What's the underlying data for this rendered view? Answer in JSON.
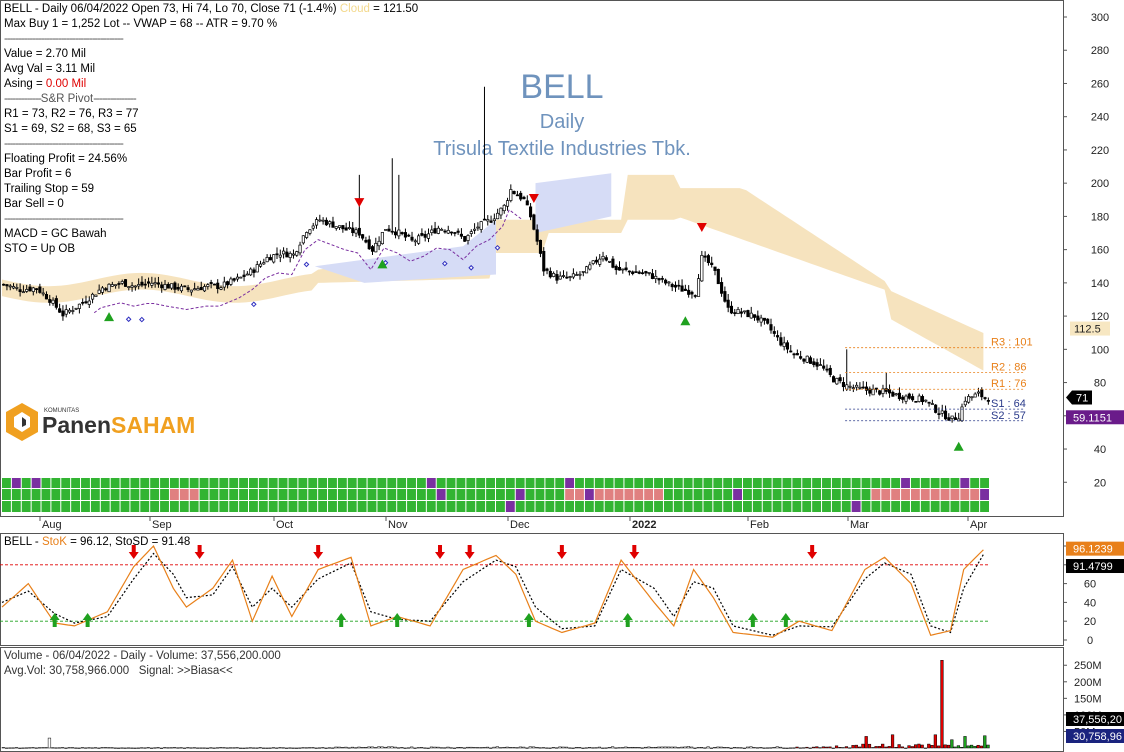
{
  "header": {
    "line1": "BELL - Daily 06/04/2022 Open 73, Hi 74, Lo 70, Close 71 (-1.4%)",
    "cloud_label": "Cloud",
    "cloud_value": "= 121.50",
    "line2": "Max Buy 1 = 1,252 Lot  --  VWAP = 68  --  ATR = 9.70 %"
  },
  "info": {
    "value": "Value = 2.70 Mil",
    "avg_val": "Avg Val = 3.11 Mil",
    "asing_label": "Asing = ",
    "asing_value": "0.00 Mil",
    "pivot_title": "S&R Pivot",
    "r_line": "R1 = 73, R2 = 76, R3 = 77",
    "s_line": "S1 = 69, S2 = 68, S3 = 65",
    "floating_profit": "Floating Profit = 24.56%",
    "bar_profit": "Bar Profit = 6",
    "trailing_stop": "Trailing Stop = 59",
    "bar_sell": "Bar Sell = 0",
    "macd": "MACD =  GC Bawah",
    "sto": "STO  =  Up OB"
  },
  "watermark": {
    "ticker": "BELL",
    "period": "Daily",
    "company": "Trisula Textile Industries Tbk."
  },
  "logo": {
    "small": "KOMUNITAS",
    "part1": "Panen",
    "part2": "SAHAM"
  },
  "colors": {
    "up": "#1fa11f",
    "down": "#e00000",
    "cloud": "#f5deb3",
    "cloud_blue": "#d6dcf6",
    "signal_grid": "#32b432",
    "stoch_k": "#e8801a"
  },
  "chart_data": [
    {
      "type": "candlestick",
      "panel": "price",
      "ylim": [
        0,
        310
      ],
      "y_ticks": [
        20,
        40,
        60,
        80,
        100,
        120,
        140,
        160,
        180,
        200,
        220,
        240,
        260,
        280,
        300
      ],
      "x_labels": [
        "Aug",
        "Sep",
        "Oct",
        "Nov",
        "Dec",
        "2022",
        "Feb",
        "Mar",
        "Apr"
      ],
      "close_path": [
        [
          0,
          139
        ],
        [
          5,
          136
        ],
        [
          10,
          137
        ],
        [
          14,
          130
        ],
        [
          18,
          121
        ],
        [
          24,
          128
        ],
        [
          30,
          137
        ],
        [
          36,
          140
        ],
        [
          40,
          138
        ],
        [
          45,
          140
        ],
        [
          50,
          138
        ],
        [
          56,
          136
        ],
        [
          62,
          138
        ],
        [
          66,
          138
        ],
        [
          72,
          143
        ],
        [
          76,
          148
        ],
        [
          80,
          155
        ],
        [
          84,
          158
        ],
        [
          88,
          157
        ],
        [
          92,
          172
        ],
        [
          96,
          178
        ],
        [
          100,
          175
        ],
        [
          104,
          172
        ],
        [
          108,
          170
        ],
        [
          112,
          160
        ],
        [
          116,
          173
        ],
        [
          120,
          170
        ],
        [
          124,
          165
        ],
        [
          128,
          168
        ],
        [
          132,
          173
        ],
        [
          136,
          172
        ],
        [
          140,
          166
        ],
        [
          144,
          174
        ],
        [
          148,
          178
        ],
        [
          152,
          186
        ],
        [
          154,
          196
        ],
        [
          158,
          190
        ],
        [
          160,
          180
        ],
        [
          162,
          165
        ],
        [
          164,
          148
        ],
        [
          168,
          143
        ],
        [
          172,
          143
        ],
        [
          176,
          146
        ],
        [
          182,
          157
        ],
        [
          186,
          148
        ],
        [
          190,
          147
        ],
        [
          196,
          145
        ],
        [
          202,
          139
        ],
        [
          206,
          136
        ],
        [
          210,
          134
        ],
        [
          212,
          155
        ],
        [
          214,
          152
        ],
        [
          216,
          146
        ],
        [
          218,
          135
        ],
        [
          220,
          124
        ],
        [
          224,
          122
        ],
        [
          228,
          120
        ],
        [
          232,
          114
        ],
        [
          236,
          104
        ],
        [
          240,
          97
        ],
        [
          244,
          94
        ],
        [
          248,
          90
        ],
        [
          252,
          82
        ],
        [
          256,
          78
        ],
        [
          260,
          76
        ],
        [
          264,
          75
        ],
        [
          268,
          74
        ],
        [
          272,
          72
        ],
        [
          276,
          71
        ],
        [
          280,
          69
        ],
        [
          284,
          62
        ],
        [
          288,
          58
        ],
        [
          290,
          60
        ],
        [
          292,
          70
        ],
        [
          296,
          73
        ],
        [
          298,
          71
        ]
      ],
      "total_bars": 300,
      "price_labels": {
        "cloud_right": "112.5",
        "close": "71",
        "trailing": "59.1151"
      },
      "pivot_levels": [
        {
          "label": "R3 : 101",
          "value": 101
        },
        {
          "label": "R2 : 86",
          "value": 86
        },
        {
          "label": "R1 : 76",
          "value": 76
        },
        {
          "label": "S1 : 64",
          "value": 64
        },
        {
          "label": "S2 : 57",
          "value": 57
        }
      ],
      "buy_signals": [
        32,
        115,
        207,
        290
      ],
      "sell_signals": [
        108,
        161,
        212
      ]
    },
    {
      "type": "line",
      "panel": "stochastic",
      "title_prefix": "BELL - ",
      "title_k": "StoK",
      "title_rest": " = 96.12, StoSD = 91.48",
      "ylim": [
        -5,
        105
      ],
      "y_ticks": [
        0,
        20,
        40,
        60,
        80,
        100
      ],
      "levels": [
        20,
        80
      ],
      "k_path": [
        [
          0,
          35
        ],
        [
          8,
          60
        ],
        [
          16,
          18
        ],
        [
          22,
          15
        ],
        [
          32,
          30
        ],
        [
          40,
          78
        ],
        [
          46,
          100
        ],
        [
          52,
          55
        ],
        [
          56,
          35
        ],
        [
          64,
          55
        ],
        [
          70,
          85
        ],
        [
          76,
          20
        ],
        [
          82,
          68
        ],
        [
          88,
          25
        ],
        [
          96,
          75
        ],
        [
          106,
          88
        ],
        [
          112,
          15
        ],
        [
          120,
          25
        ],
        [
          130,
          15
        ],
        [
          140,
          75
        ],
        [
          150,
          90
        ],
        [
          156,
          70
        ],
        [
          162,
          20
        ],
        [
          170,
          8
        ],
        [
          180,
          18
        ],
        [
          188,
          85
        ],
        [
          198,
          40
        ],
        [
          204,
          15
        ],
        [
          210,
          75
        ],
        [
          216,
          45
        ],
        [
          222,
          8
        ],
        [
          234,
          3
        ],
        [
          242,
          20
        ],
        [
          252,
          10
        ],
        [
          262,
          75
        ],
        [
          268,
          88
        ],
        [
          276,
          60
        ],
        [
          282,
          5
        ],
        [
          288,
          10
        ],
        [
          292,
          75
        ],
        [
          298,
          96
        ]
      ],
      "sd_path": [
        [
          0,
          40
        ],
        [
          8,
          52
        ],
        [
          16,
          28
        ],
        [
          22,
          18
        ],
        [
          32,
          25
        ],
        [
          40,
          65
        ],
        [
          46,
          92
        ],
        [
          52,
          70
        ],
        [
          56,
          45
        ],
        [
          64,
          48
        ],
        [
          70,
          78
        ],
        [
          76,
          35
        ],
        [
          82,
          55
        ],
        [
          88,
          35
        ],
        [
          96,
          65
        ],
        [
          106,
          82
        ],
        [
          112,
          30
        ],
        [
          120,
          22
        ],
        [
          130,
          20
        ],
        [
          140,
          62
        ],
        [
          150,
          85
        ],
        [
          156,
          78
        ],
        [
          162,
          35
        ],
        [
          170,
          12
        ],
        [
          180,
          15
        ],
        [
          188,
          75
        ],
        [
          198,
          55
        ],
        [
          204,
          25
        ],
        [
          210,
          62
        ],
        [
          216,
          55
        ],
        [
          222,
          15
        ],
        [
          234,
          5
        ],
        [
          242,
          15
        ],
        [
          252,
          14
        ],
        [
          262,
          65
        ],
        [
          268,
          82
        ],
        [
          276,
          70
        ],
        [
          282,
          15
        ],
        [
          288,
          8
        ],
        [
          292,
          55
        ],
        [
          298,
          91
        ]
      ],
      "values": {
        "stok": "96.1239",
        "stosd": "91.4799"
      },
      "buy_arrows": [
        16,
        26,
        103,
        120,
        160,
        190,
        228,
        238
      ],
      "sell_arrows": [
        40,
        60,
        96,
        133,
        142,
        170,
        192,
        246
      ]
    },
    {
      "type": "bar",
      "panel": "volume",
      "title": "Volume - 06/04/2022 - Daily - Volume: 37,556,200.000",
      "avg": "Avg.Vol: 30,758,966.000",
      "signal": "Signal: >>Biasa<<",
      "y_ticks": [
        "250M",
        "200M",
        "150M",
        "100M",
        "50M"
      ],
      "tick_values": [
        250,
        200,
        150,
        100,
        50
      ],
      "ylim": [
        0,
        290
      ],
      "value_labels": {
        "volume": "37,556,20",
        "avg": "30,758,96"
      },
      "spikes": [
        [
          14,
          30
        ],
        [
          108,
          3
        ],
        [
          138,
          2
        ],
        [
          170,
          3
        ],
        [
          208,
          5
        ],
        [
          250,
          3
        ],
        [
          262,
          35
        ],
        [
          270,
          40
        ],
        [
          278,
          12
        ],
        [
          283,
          40
        ],
        [
          285,
          265
        ],
        [
          288,
          25
        ],
        [
          292,
          35
        ],
        [
          298,
          37
        ]
      ]
    }
  ]
}
